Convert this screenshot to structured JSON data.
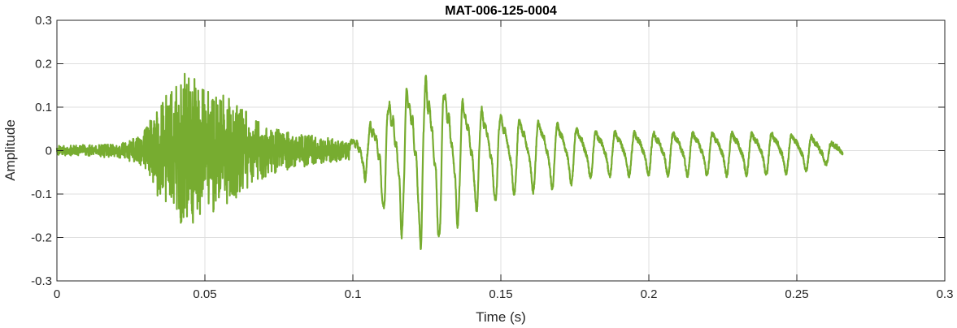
{
  "chart_data": {
    "type": "line",
    "title": "MAT-006-125-0004",
    "xlabel": "Time (s)",
    "ylabel": "Amplitude",
    "xlim": [
      0,
      0.3
    ],
    "ylim": [
      -0.3,
      0.3
    ],
    "grid": true,
    "line_color": "#77ac30",
    "x_ticks": [
      0,
      0.05,
      0.1,
      0.15,
      0.2,
      0.25,
      0.3
    ],
    "x_tick_labels": [
      "0",
      "0.05",
      "0.1",
      "0.15",
      "0.2",
      "0.25",
      "0.3"
    ],
    "y_ticks": [
      -0.3,
      -0.2,
      -0.1,
      0,
      0.1,
      0.2,
      0.3
    ],
    "y_tick_labels": [
      "-0.3",
      "-0.2",
      "-0.1",
      "0",
      "0.1",
      "0.2",
      "0.3"
    ],
    "series": [
      {
        "duration_s": 0.2655,
        "envelope_points": [
          {
            "t": 0.0,
            "env": 0.012
          },
          {
            "t": 0.012,
            "env": 0.014
          },
          {
            "t": 0.022,
            "env": 0.018
          },
          {
            "t": 0.028,
            "env": 0.035
          },
          {
            "t": 0.032,
            "env": 0.08
          },
          {
            "t": 0.037,
            "env": 0.15
          },
          {
            "t": 0.041,
            "env": 0.205
          },
          {
            "t": 0.045,
            "env": 0.18
          },
          {
            "t": 0.05,
            "env": 0.15
          },
          {
            "t": 0.056,
            "env": 0.14
          },
          {
            "t": 0.063,
            "env": 0.1
          },
          {
            "t": 0.072,
            "env": 0.055
          },
          {
            "t": 0.082,
            "env": 0.04
          },
          {
            "t": 0.092,
            "env": 0.03
          },
          {
            "t": 0.098,
            "env": 0.02
          },
          {
            "t": 0.1,
            "env": 0.03
          },
          {
            "t": 0.105,
            "env": 0.06
          },
          {
            "t": 0.11,
            "env": 0.12
          },
          {
            "t": 0.115,
            "env": 0.16
          },
          {
            "t": 0.12,
            "env": 0.18
          },
          {
            "t": 0.126,
            "env": 0.205
          },
          {
            "t": 0.133,
            "env": 0.16
          },
          {
            "t": 0.142,
            "env": 0.12
          },
          {
            "t": 0.155,
            "env": 0.09
          },
          {
            "t": 0.17,
            "env": 0.075
          },
          {
            "t": 0.18,
            "env": 0.055
          },
          {
            "t": 0.2,
            "env": 0.05
          },
          {
            "t": 0.24,
            "env": 0.05
          },
          {
            "t": 0.255,
            "env": 0.04
          },
          {
            "t": 0.2655,
            "env": 0.015
          }
        ],
        "voiced_segment": {
          "start_s": 0.101,
          "period_s": 0.0062,
          "period_end_s": 0.0068
        },
        "noise_segment": {
          "start_s": 0.0,
          "end_s": 0.099
        }
      }
    ]
  }
}
